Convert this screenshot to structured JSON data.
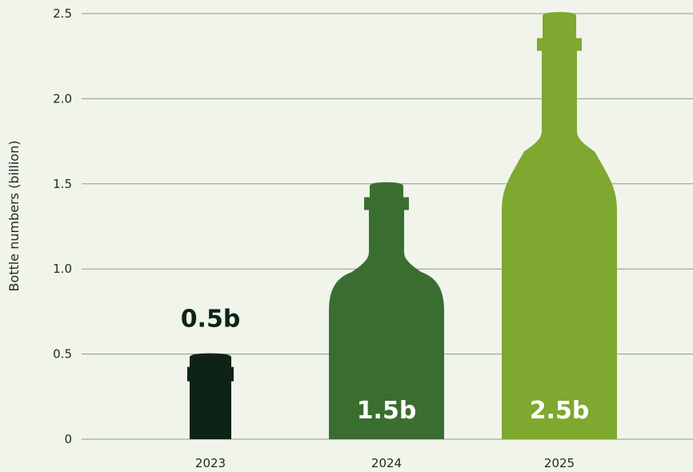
{
  "chart_data": {
    "type": "bar",
    "categories": [
      "2023",
      "2024",
      "2025"
    ],
    "values": [
      0.5,
      1.5,
      2.5
    ],
    "data_labels": [
      "0.5b",
      "1.5b",
      "2.5b"
    ],
    "title": "",
    "xlabel": "",
    "ylabel": "Bottle numbers (billion)",
    "ylim": [
      0,
      2.5
    ],
    "yticks": [
      0,
      0.5,
      1.0,
      1.5,
      2.0,
      2.5
    ],
    "ytick_labels": [
      "0",
      "0.5",
      "1.0",
      "1.5",
      "2.0",
      "2.5"
    ],
    "grid": true,
    "bar_shape": "wine-bottle",
    "colors": [
      "#0c2315",
      "#3a6e30",
      "#7ea82f"
    ],
    "label_colors": [
      "#0c2315",
      "#ffffff",
      "#ffffff"
    ]
  }
}
